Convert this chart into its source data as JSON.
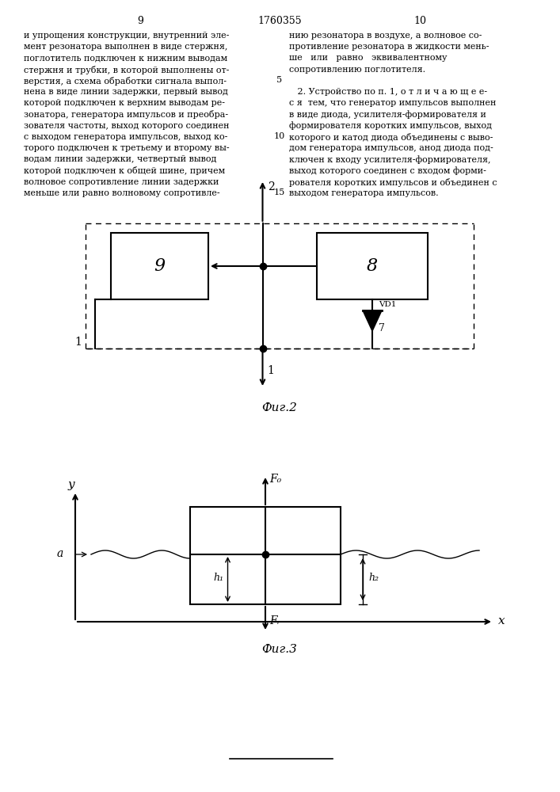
{
  "page_number_left": "9",
  "patent_number": "1760355",
  "page_number_right": "10",
  "text_left_lines": [
    "и упрощения конструкции, внутренний эле-",
    "мент резонатора выполнен в виде стержня,",
    "поглотитель подключен к нижним выводам",
    "стержня и трубки, в которой выполнены от-",
    "верстия, а схема обработки сигнала выпол-",
    "нена в виде линии задержки, первый вывод",
    "которой подключен к верхним выводам ре-",
    "зонатора, генератора импульсов и преобра-",
    "зователя частоты, выход которого соединен",
    "с выходом генератора импульсов, выход ко-",
    "торого подключен к третьему и второму вы-",
    "водам линии задержки, четвертый вывод",
    "которой подключен к общей шине, причем",
    "волновое сопротивление линии задержки",
    "меньше или равно волновому сопротивле-"
  ],
  "line_numbers": [
    5,
    10,
    15
  ],
  "text_right_lines": [
    "нию резонатора в воздухе, а волновое со-",
    "противление резонатора в жидкости мень-",
    "ше   или   равно   эквивалентному",
    "сопротивлению поглотителя.",
    "",
    "   2. Устройство по п. 1, о т л и ч а ю щ е е-",
    "с я  тем, что генератор импульсов выполнен",
    "в виде диода, усилителя-формирователя и",
    "формирователя коротких импульсов, выход",
    "которого и катод диода объединены с выво-",
    "дом генератора импульсов, анод диода под-",
    "ключен к входу усилителя-формирователя,",
    "выход которого соединен с входом форми-",
    "рователя коротких импульсов и объединен с",
    "выходом генератора импульсов."
  ],
  "fig2_label": "Фиг.2",
  "fig3_label": "Фиг.3",
  "background_color": "#ffffff"
}
